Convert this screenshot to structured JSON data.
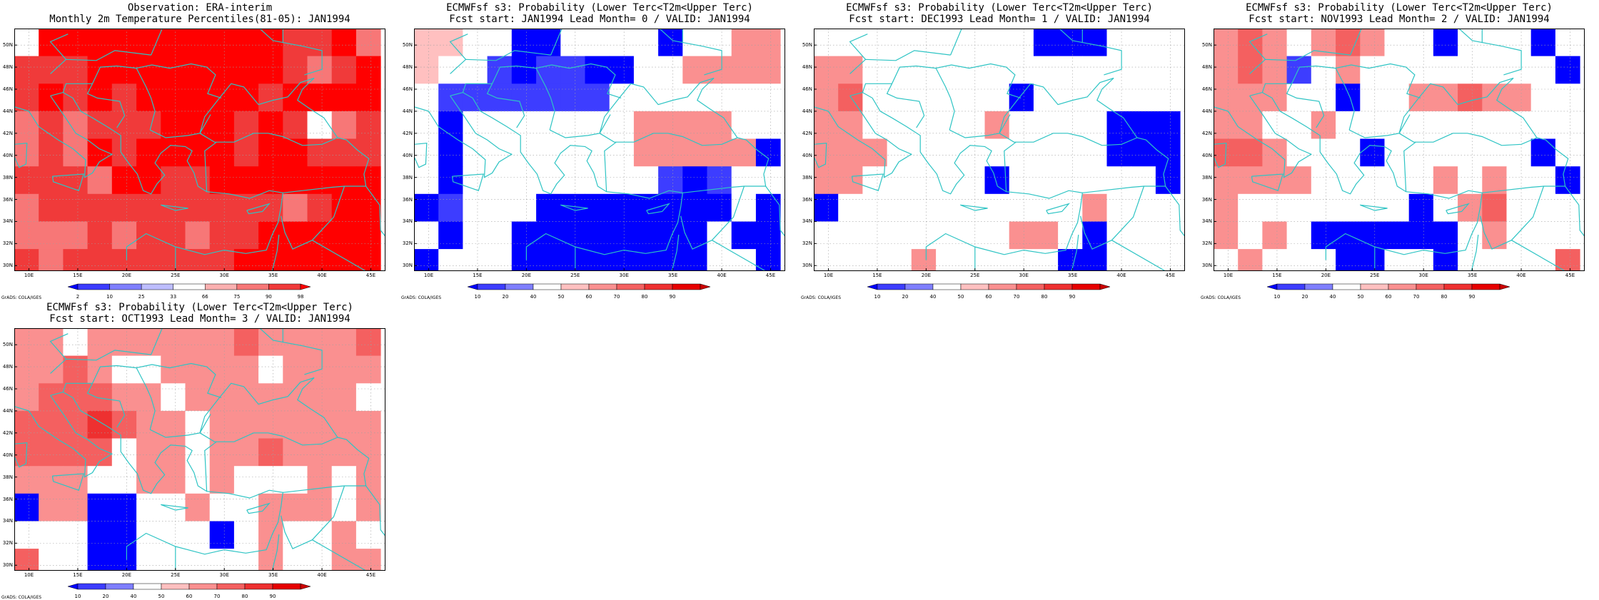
{
  "lon_labels": [
    "10E",
    "15E",
    "20E",
    "25E",
    "30E",
    "35E",
    "40E",
    "45E"
  ],
  "lat_labels": [
    "30N",
    "32N",
    "34N",
    "36N",
    "38N",
    "40N",
    "42N",
    "44N",
    "46N",
    "48N",
    "50N"
  ],
  "grid": {
    "lon_start": 8.5,
    "lon_step": 2.5,
    "ncols": 15,
    "lat_top": 51.5,
    "lat_step": 2.5,
    "nrows": 9,
    "lon_range": [
      8.5,
      46.5
    ],
    "lat_range": [
      29.5,
      51.5
    ]
  },
  "colors": {
    "coast": "#2ec4c4",
    "ramp_obs": [
      "#0000ff",
      "#3b3bff",
      "#7f7fff",
      "#bdbdff",
      "#ffffff",
      "#fbb0b0",
      "#f77777",
      "#f03a3a",
      "#ff0000"
    ],
    "ramp_prob": [
      "#0000ff",
      "#3d3dff",
      "#7f7fff",
      "#ffffff",
      "#ffc0c0",
      "#fa9090",
      "#f46060",
      "#ee3030",
      "#e60000",
      "#cc0000"
    ]
  },
  "grads_label": "GrADS: COLA/IGES",
  "panels": [
    {
      "title1": "Observation: ERA-interim",
      "title2": "Monthly 2m Temperature Percentiles(81-05): JAN1994",
      "colorbar_labels": [
        "2",
        "10",
        "25",
        "33",
        "66",
        "75",
        "90",
        "98"
      ],
      "ramp": "obs",
      "values": [
        [
          4,
          8,
          8,
          8,
          8,
          8,
          8,
          8,
          8,
          8,
          8,
          7,
          7,
          8,
          6
        ],
        [
          7,
          7,
          7,
          8,
          8,
          8,
          8,
          8,
          8,
          8,
          8,
          7,
          6,
          7,
          8
        ],
        [
          7,
          8,
          7,
          8,
          7,
          8,
          8,
          8,
          8,
          8,
          7,
          8,
          8,
          8,
          8
        ],
        [
          6,
          7,
          6,
          7,
          7,
          7,
          8,
          8,
          8,
          7,
          8,
          7,
          4,
          6,
          7
        ],
        [
          6,
          7,
          6,
          8,
          7,
          8,
          8,
          8,
          8,
          7,
          8,
          8,
          7,
          7,
          7
        ],
        [
          7,
          7,
          7,
          6,
          8,
          8,
          7,
          7,
          8,
          8,
          8,
          8,
          8,
          8,
          8
        ],
        [
          6,
          7,
          7,
          7,
          7,
          7,
          7,
          7,
          7,
          7,
          7,
          6,
          7,
          8,
          8
        ],
        [
          6,
          6,
          6,
          7,
          6,
          7,
          7,
          6,
          7,
          7,
          8,
          8,
          8,
          8,
          8
        ],
        [
          7,
          6,
          7,
          7,
          7,
          7,
          7,
          7,
          7,
          8,
          8,
          8,
          8,
          8,
          8
        ]
      ]
    },
    {
      "title1": "ECMWFsf s3: Probability (Lower Terc<T2m<Upper Terc)",
      "title2": "Fcst start: JAN1994  Lead Month= 0 / VALID: JAN1994",
      "colorbar_labels": [
        "10",
        "20",
        "40",
        "50",
        "60",
        "70",
        "80",
        "90"
      ],
      "ramp": "prob",
      "values": [
        [
          4,
          4,
          3,
          3,
          0,
          0,
          3,
          3,
          3,
          3,
          0,
          3,
          3,
          5,
          5
        ],
        [
          4,
          3,
          3,
          1,
          0,
          1,
          1,
          0,
          0,
          3,
          3,
          5,
          5,
          5,
          5
        ],
        [
          3,
          1,
          1,
          1,
          1,
          1,
          1,
          1,
          3,
          3,
          3,
          3,
          3,
          3,
          3
        ],
        [
          3,
          0,
          3,
          3,
          3,
          3,
          3,
          3,
          3,
          5,
          5,
          5,
          5,
          3,
          3
        ],
        [
          3,
          0,
          3,
          3,
          3,
          3,
          3,
          3,
          3,
          5,
          5,
          5,
          5,
          5,
          0
        ],
        [
          3,
          0,
          3,
          3,
          3,
          3,
          3,
          3,
          3,
          3,
          1,
          0,
          1,
          3,
          3
        ],
        [
          0,
          1,
          3,
          3,
          3,
          0,
          0,
          0,
          0,
          0,
          0,
          0,
          0,
          3,
          0
        ],
        [
          3,
          0,
          3,
          3,
          0,
          0,
          0,
          0,
          0,
          0,
          0,
          0,
          3,
          0,
          0
        ],
        [
          0,
          3,
          3,
          3,
          0,
          0,
          0,
          0,
          0,
          0,
          0,
          0,
          3,
          3,
          0
        ]
      ]
    },
    {
      "title1": "ECMWFsf s3: Probability (Lower Terc<T2m<Upper Terc)",
      "title2": "Fcst start: DEC1993  Lead Month= 1 / VALID: JAN1994",
      "colorbar_labels": [
        "10",
        "20",
        "40",
        "50",
        "60",
        "70",
        "80",
        "90"
      ],
      "ramp": "prob",
      "values": [
        [
          3,
          3,
          3,
          3,
          3,
          3,
          3,
          3,
          3,
          0,
          0,
          0,
          3,
          3,
          3
        ],
        [
          5,
          5,
          3,
          3,
          3,
          3,
          3,
          3,
          3,
          3,
          3,
          3,
          3,
          3,
          3
        ],
        [
          5,
          6,
          3,
          3,
          3,
          3,
          3,
          3,
          0,
          3,
          3,
          3,
          3,
          3,
          3
        ],
        [
          5,
          5,
          3,
          3,
          3,
          3,
          3,
          5,
          3,
          3,
          3,
          3,
          0,
          0,
          0
        ],
        [
          5,
          5,
          5,
          3,
          3,
          3,
          3,
          3,
          3,
          3,
          3,
          3,
          0,
          0,
          0
        ],
        [
          5,
          5,
          3,
          3,
          3,
          3,
          3,
          0,
          3,
          3,
          3,
          3,
          3,
          3,
          0
        ],
        [
          0,
          3,
          3,
          3,
          3,
          3,
          3,
          3,
          3,
          3,
          3,
          5,
          3,
          3,
          3
        ],
        [
          3,
          3,
          3,
          3,
          3,
          3,
          3,
          3,
          5,
          5,
          3,
          0,
          3,
          3,
          3
        ],
        [
          3,
          3,
          3,
          3,
          5,
          3,
          3,
          3,
          3,
          3,
          0,
          0,
          3,
          3,
          3
        ]
      ]
    },
    {
      "title1": "ECMWFsf s3: Probability (Lower Terc<T2m<Upper Terc)",
      "title2": "Fcst start: NOV1993  Lead Month= 2 / VALID: JAN1994",
      "colorbar_labels": [
        "10",
        "20",
        "40",
        "50",
        "60",
        "70",
        "80",
        "90"
      ],
      "ramp": "prob",
      "values": [
        [
          5,
          6,
          5,
          3,
          5,
          6,
          5,
          3,
          3,
          0,
          3,
          3,
          3,
          0,
          3
        ],
        [
          5,
          6,
          5,
          1,
          3,
          5,
          3,
          3,
          3,
          3,
          3,
          3,
          3,
          3,
          0
        ],
        [
          5,
          5,
          5,
          3,
          3,
          0,
          3,
          3,
          5,
          5,
          6,
          5,
          5,
          3,
          3
        ],
        [
          5,
          5,
          3,
          3,
          5,
          3,
          3,
          3,
          3,
          3,
          3,
          3,
          3,
          3,
          3
        ],
        [
          6,
          6,
          5,
          3,
          3,
          3,
          0,
          3,
          3,
          3,
          3,
          3,
          3,
          0,
          3
        ],
        [
          5,
          5,
          5,
          5,
          3,
          3,
          3,
          3,
          3,
          5,
          3,
          5,
          3,
          3,
          0
        ],
        [
          5,
          3,
          3,
          3,
          3,
          3,
          3,
          3,
          0,
          3,
          5,
          6,
          3,
          3,
          3
        ],
        [
          5,
          3,
          5,
          3,
          0,
          0,
          0,
          0,
          0,
          0,
          3,
          5,
          3,
          3,
          3
        ],
        [
          3,
          5,
          3,
          3,
          3,
          0,
          0,
          3,
          3,
          0,
          3,
          3,
          3,
          3,
          6
        ]
      ]
    },
    {
      "title1": "ECMWFsf s3: Probability (Lower Terc<T2m<Upper Terc)",
      "title2": "Fcst start: OCT1993  Lead Month= 3 / VALID: JAN1994",
      "colorbar_labels": [
        "10",
        "20",
        "40",
        "50",
        "60",
        "70",
        "80",
        "90"
      ],
      "ramp": "prob",
      "values": [
        [
          5,
          5,
          3,
          5,
          5,
          5,
          5,
          5,
          5,
          6,
          5,
          5,
          5,
          5,
          6
        ],
        [
          5,
          5,
          6,
          5,
          3,
          3,
          5,
          5,
          5,
          5,
          3,
          5,
          5,
          5,
          5
        ],
        [
          5,
          6,
          6,
          6,
          5,
          5,
          3,
          5,
          5,
          5,
          5,
          5,
          5,
          5,
          3
        ],
        [
          6,
          6,
          6,
          7,
          6,
          5,
          5,
          3,
          5,
          5,
          5,
          5,
          5,
          5,
          5
        ],
        [
          6,
          6,
          6,
          6,
          3,
          5,
          5,
          3,
          5,
          5,
          6,
          5,
          5,
          5,
          5
        ],
        [
          5,
          5,
          5,
          3,
          3,
          5,
          5,
          3,
          5,
          3,
          3,
          3,
          5,
          3,
          5
        ],
        [
          0,
          5,
          5,
          0,
          0,
          3,
          3,
          5,
          3,
          3,
          5,
          5,
          5,
          3,
          5
        ],
        [
          3,
          3,
          3,
          0,
          0,
          3,
          3,
          3,
          0,
          3,
          5,
          3,
          3,
          5,
          3
        ],
        [
          6,
          3,
          3,
          0,
          0,
          3,
          3,
          3,
          3,
          3,
          5,
          3,
          3,
          5,
          5
        ]
      ]
    }
  ]
}
